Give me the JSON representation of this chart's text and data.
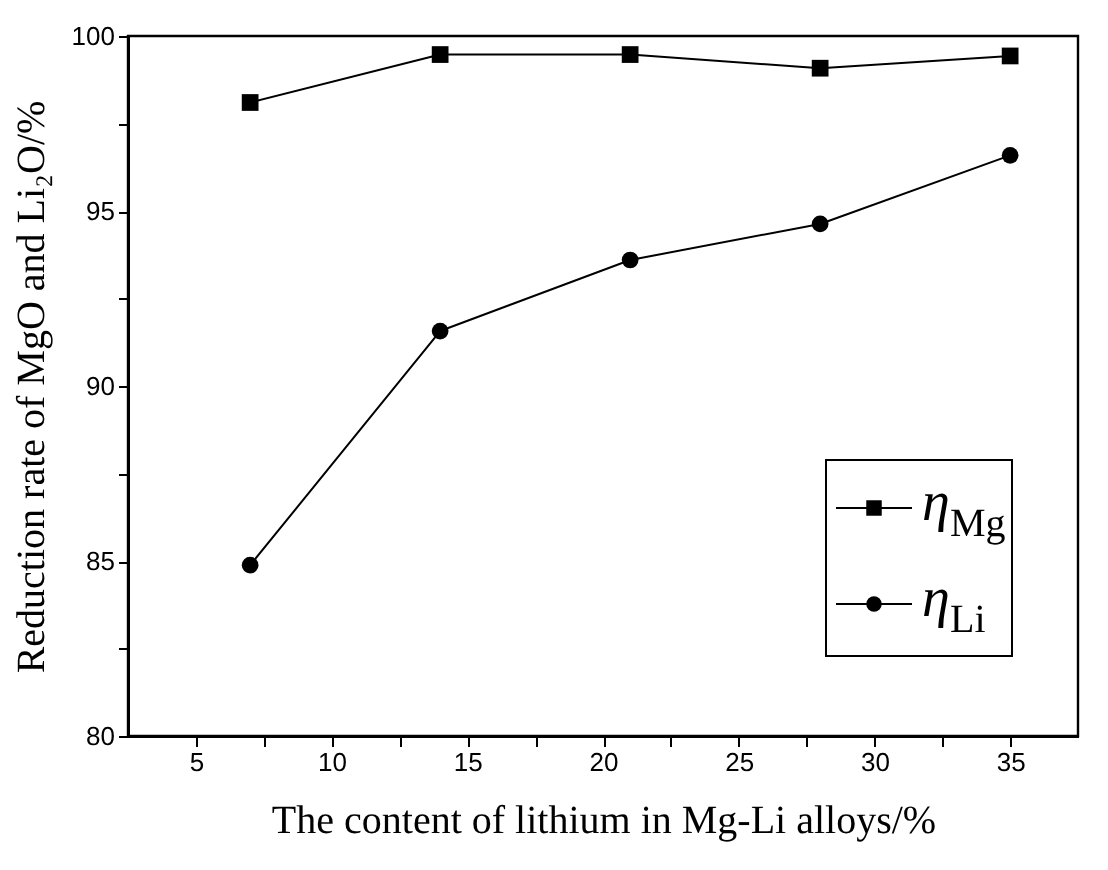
{
  "chart_data": {
    "type": "line",
    "xlabel": "The content of lithium in Mg-Li alloys/%",
    "ylabel": "Reduction rate of MgO and Li₂O/%",
    "x": [
      7,
      14,
      21,
      28,
      35
    ],
    "series": [
      {
        "name": "η$_{Mg}$",
        "color": "#000000",
        "marker": "square",
        "values": [
          98.1,
          99.47,
          99.47,
          99.08,
          99.43
        ]
      },
      {
        "name": "η$_{Li}$",
        "color": "#000000",
        "marker": "circle",
        "values": [
          84.88,
          91.57,
          93.6,
          94.63,
          96.59
        ]
      }
    ],
    "xlim": [
      2.5,
      37.5
    ],
    "xticks": [
      5,
      {
        "value": 7.5,
        "label": null
      },
      10,
      {
        "value": 12.5,
        "label": null
      },
      15,
      {
        "value": 17.5,
        "label": null
      },
      20,
      {
        "value": 22.5,
        "label": null
      },
      25,
      {
        "value": 27.5,
        "label": null
      },
      30,
      {
        "value": 32.5,
        "label": null
      },
      35
    ],
    "ylim": [
      80,
      100
    ],
    "yticks": [
      80,
      {
        "value": 82.5,
        "label": null
      },
      85,
      {
        "value": 87.5,
        "label": null
      },
      90,
      {
        "value": 92.5,
        "label": null
      },
      95,
      {
        "value": 97.5,
        "label": null
      },
      100
    ],
    "grid": false,
    "legend": "bottom right",
    "line_style": "solid"
  }
}
